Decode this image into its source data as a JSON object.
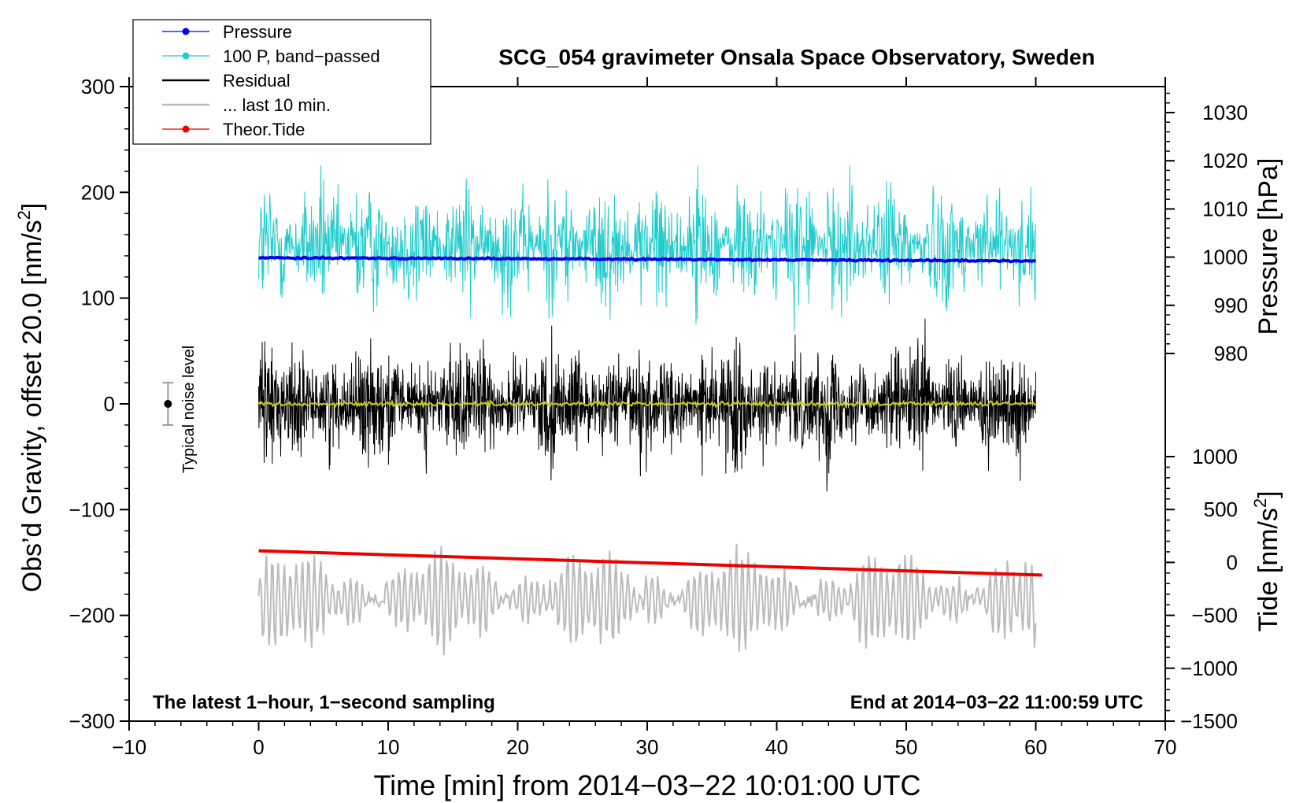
{
  "chart_data": {
    "type": "line",
    "title": "SCG_054 gravimeter Onsala Space Observatory, Sweden",
    "xlabel": "Time [min] from 2014−03−22 10:01:00 UTC",
    "ylabel_left_main": "Obs’d Gravity, offset 20.0 [nm/s",
    "ylabel_left_sup": "2",
    "ylabel_left_end": "]",
    "ylabel_right_pressure": "Pressure [hPa]",
    "ylabel_right_tide_main": "Tide [nm/s",
    "ylabel_right_tide_sup": "2",
    "ylabel_right_tide_end": "]",
    "xlim": [
      -10,
      70
    ],
    "ylim_left": [
      -300,
      300
    ],
    "pressure_axis": {
      "ticks": [
        980,
        990,
        1000,
        1010,
        1020,
        1030
      ],
      "tick_labels": [
        "980",
        "990",
        "1000",
        "1010",
        "1020",
        "1030"
      ]
    },
    "tide_axis": {
      "ticks": [
        -1500,
        -1000,
        -500,
        0,
        500,
        1000
      ],
      "tick_labels": [
        "−1500",
        "−1000",
        "−500",
        "0",
        "500",
        "1000"
      ]
    },
    "x_ticks": [
      -10,
      0,
      10,
      20,
      30,
      40,
      50,
      60,
      70
    ],
    "x_tick_labels": [
      "−10",
      "0",
      "10",
      "20",
      "30",
      "40",
      "50",
      "60",
      "70"
    ],
    "y_ticks_left": [
      -300,
      -200,
      -100,
      0,
      100,
      200,
      300
    ],
    "y_tick_labels_left": [
      "−300",
      "−200",
      "−100",
      "0",
      "100",
      "200",
      "300"
    ],
    "legend": [
      {
        "label": "Pressure",
        "color": "#0000ee",
        "marker": true
      },
      {
        "label": "100 P, band−passed",
        "color": "#22cccc",
        "marker": true
      },
      {
        "label": "Residual",
        "color": "#000000",
        "marker": false
      },
      {
        "label": "... last 10 min.",
        "color": "#bbbbbb",
        "marker": false
      },
      {
        "label": "Theor.Tide",
        "color": "#ee0000",
        "marker": true
      }
    ],
    "annotations": {
      "bottom_left": "The latest 1−hour, 1−second sampling",
      "bottom_right": "End at 2014−03−22 11:00:59 UTC",
      "noise_label": "Typical noise level"
    },
    "series": [
      {
        "name": "Pressure",
        "color": "#0000ee",
        "axis": "pressure",
        "x_range": [
          0,
          60
        ],
        "start_hpa": 999.9,
        "end_hpa": 999.2
      },
      {
        "name": "100 P, band−passed",
        "color": "#22cccc",
        "axis": "left",
        "x_range": [
          0,
          60
        ],
        "center": 150,
        "min": 55,
        "max": 240
      },
      {
        "name": "Residual",
        "color": "#000000",
        "axis": "left",
        "x_range": [
          0,
          60
        ],
        "center": 0,
        "min": -88,
        "max": 97
      },
      {
        "name": "Residual smoothed",
        "color": "#cccc22",
        "axis": "left",
        "x_range": [
          0,
          60
        ],
        "center": 0,
        "min": -3,
        "max": 3
      },
      {
        "name": "... last 10 min.",
        "color": "#bbbbbb",
        "axis": "left",
        "x_range": [
          0,
          60
        ],
        "center": -185,
        "min": -258,
        "max": -122
      },
      {
        "name": "Theor.Tide",
        "color": "#ee0000",
        "axis": "tide",
        "x_range": [
          0,
          60.5
        ],
        "start": 110,
        "end": -120
      }
    ],
    "noise_level": {
      "x": -7,
      "center": 0,
      "low": -20,
      "high": 20
    }
  }
}
